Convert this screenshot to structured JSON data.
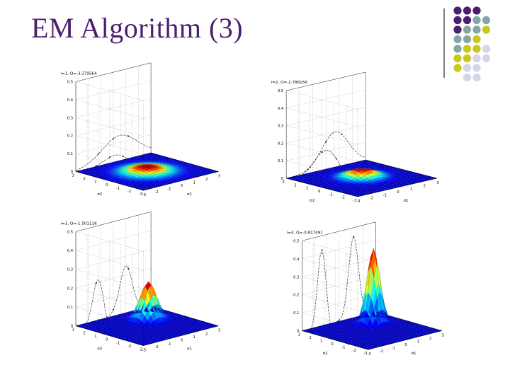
{
  "slide": {
    "title": "EM Algorithm (3)"
  },
  "palette": {
    "purple": "#4B1E6E",
    "teal": "#86A6A3",
    "yellow": "#C8C81E",
    "lavender": "#D5D5E8",
    "line": "#7f7f7f"
  },
  "chart_data": [
    {
      "type": "surface3d",
      "title": "i=1, Q=-3.279564",
      "xlabel": "σ1",
      "ylabel": "σ2",
      "xticks": [
        "-3",
        "-2",
        "-1",
        "0",
        "1",
        "2",
        "3"
      ],
      "yticks": [
        "-3",
        "-2",
        "-1",
        "0",
        "1",
        "2",
        "3"
      ],
      "zticks": [
        "0",
        "0.1",
        "0.2",
        "0.3",
        "0.4",
        "0.5"
      ],
      "zlim": [
        0,
        0.5
      ],
      "surface": {
        "mu": [
          0,
          0
        ],
        "sigma": [
          1.0,
          1.0
        ],
        "peak": 0.03
      },
      "wall_x_curve": {
        "mu": 0.5,
        "sigma": 1.4,
        "peak": 0.14
      },
      "wall_y_curve": {
        "mu": -1.0,
        "sigma": 1.6,
        "peak": 0.16
      }
    },
    {
      "type": "surface3d",
      "title": "i=2, Q=-2.788156",
      "xlabel": "σ1",
      "ylabel": "σ2",
      "xticks": [
        "-3",
        "-2",
        "-1",
        "0",
        "1",
        "2",
        "3"
      ],
      "yticks": [
        "-3",
        "-2",
        "-1",
        "0",
        "1",
        "2",
        "3"
      ],
      "zticks": [
        "0",
        "0.1",
        "0.2",
        "0.3",
        "0.4",
        "0.5"
      ],
      "zlim": [
        0,
        0.5
      ],
      "surface": {
        "mu": [
          0.2,
          0.2
        ],
        "sigma": [
          0.75,
          0.75
        ],
        "peak": 0.05
      },
      "wall_x_curve": {
        "mu": 0.7,
        "sigma": 1.0,
        "peak": 0.2
      },
      "wall_y_curve": {
        "mu": -0.5,
        "sigma": 1.2,
        "peak": 0.22
      }
    },
    {
      "type": "surface3d",
      "title": "i=3, Q=-1.501116",
      "xlabel": "σ1",
      "ylabel": "σ2",
      "xticks": [
        "-3",
        "-2",
        "-1",
        "0",
        "1",
        "2",
        "3"
      ],
      "yticks": [
        "-3",
        "-2",
        "-1",
        "0",
        "1",
        "2",
        "3"
      ],
      "zticks": [
        "0",
        "0.1",
        "0.2",
        "0.3",
        "0.4",
        "0.5"
      ],
      "zlim": [
        0,
        0.5
      ],
      "surface": {
        "mu": [
          1.0,
          1.0
        ],
        "sigma": [
          0.5,
          0.5
        ],
        "peak": 0.2
      },
      "wall_x_curve": {
        "mu": 1.0,
        "sigma": 0.5,
        "peak": 0.25
      },
      "wall_y_curve": {
        "mu": 1.0,
        "sigma": 0.5,
        "peak": 0.28
      }
    },
    {
      "type": "surface3d",
      "title": "i=4, Q=-0.817491",
      "xlabel": "σ1",
      "ylabel": "σ2",
      "xticks": [
        "-3",
        "-2",
        "-1",
        "0",
        "1",
        "2",
        "3"
      ],
      "yticks": [
        "-3",
        "-2",
        "-1",
        "0",
        "1",
        "2",
        "3"
      ],
      "zticks": [
        "0",
        "0.1",
        "0.2",
        "0.3",
        "0.4",
        "0.5"
      ],
      "zlim": [
        0,
        0.5
      ],
      "surface": {
        "mu": [
          1.2,
          1.2
        ],
        "sigma": [
          0.4,
          0.4
        ],
        "peak": 0.42
      },
      "wall_x_curve": {
        "mu": 1.2,
        "sigma": 0.4,
        "peak": 0.45
      },
      "wall_y_curve": {
        "mu": 1.2,
        "sigma": 0.4,
        "peak": 0.48
      }
    }
  ]
}
